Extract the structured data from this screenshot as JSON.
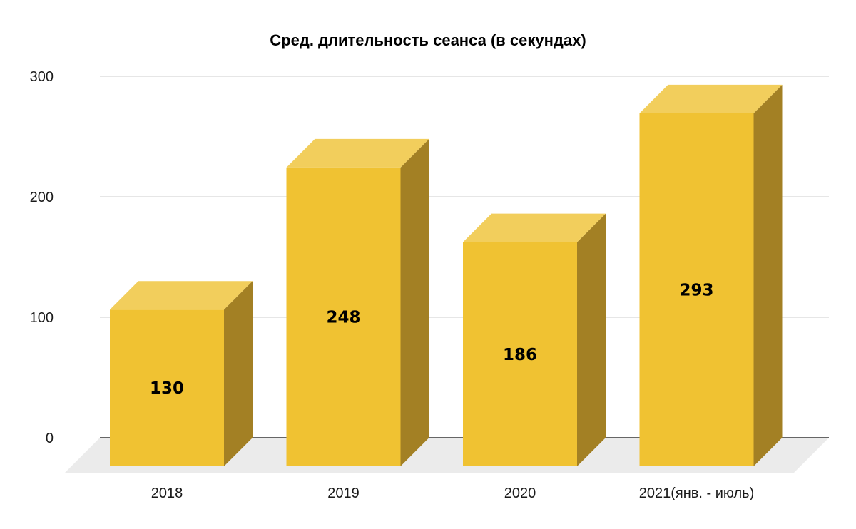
{
  "chart_data": {
    "type": "bar",
    "title": "Сред. длительность сеанса (в секундах)",
    "xlabel": "",
    "ylabel": "",
    "categories": [
      "2018",
      "2019",
      "2020",
      "2021(янв. - июль)"
    ],
    "values": [
      130,
      248,
      186,
      293
    ],
    "data_labels": [
      "130",
      "248",
      "186",
      "293"
    ],
    "y_ticks": [
      0,
      100,
      200,
      300
    ],
    "y_tick_labels": [
      "0",
      "100",
      "200",
      "300"
    ],
    "ylim": [
      0,
      300
    ],
    "grid": true,
    "style": "3d",
    "legend": "none",
    "colors": {
      "bar_front": "#F0C232",
      "bar_top": "#F2CE5C",
      "bar_side": "#A38024",
      "floor": "#EBEBEB",
      "gridline": "#CCCCCC",
      "axis": "#333333"
    }
  }
}
